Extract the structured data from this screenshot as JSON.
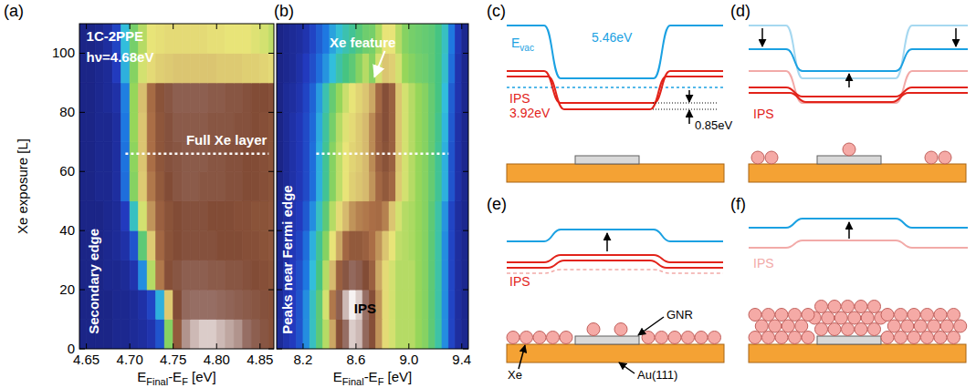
{
  "chart_data": [
    {
      "type": "heatmap",
      "panel_label": "(a)",
      "xlabel": [
        {
          "text": "E"
        },
        {
          "text": "Final",
          "sub": true
        },
        {
          "text": "-E"
        },
        {
          "text": "F",
          "sub": true
        },
        {
          "text": " [eV]"
        }
      ],
      "ylabel": "Xe exposure [L]",
      "xlim": [
        4.642,
        4.866
      ],
      "ylim": [
        0,
        110
      ],
      "xticks": [
        4.65,
        {
          "value": 4.7,
          "label": "4.70"
        },
        4.75,
        {
          "value": 4.8,
          "label": "4.80"
        },
        4.85
      ],
      "yticks": [
        0,
        20,
        40,
        60,
        80,
        100
      ],
      "x": [
        4.645,
        4.655,
        4.665,
        4.675,
        4.685,
        4.695,
        4.705,
        4.715,
        4.725,
        4.735,
        4.745,
        4.755,
        4.765,
        4.775,
        4.785,
        4.795,
        4.805,
        4.815,
        4.825,
        4.835,
        4.845,
        4.855,
        4.865
      ],
      "y": [
        5,
        15,
        25,
        35,
        45,
        55,
        65,
        75,
        85,
        95,
        105
      ],
      "cells": [
        [
          0.03,
          0.03,
          0.03,
          0.03,
          0.04,
          0.04,
          0.05,
          0.06,
          0.08,
          0.15,
          0.5,
          0.82,
          0.95,
          0.97,
          0.98,
          0.98,
          0.97,
          0.96,
          0.95,
          0.93,
          0.9,
          0.88,
          0.85
        ],
        [
          0.03,
          0.03,
          0.03,
          0.03,
          0.04,
          0.04,
          0.05,
          0.07,
          0.12,
          0.3,
          0.65,
          0.86,
          0.92,
          0.93,
          0.93,
          0.93,
          0.92,
          0.91,
          0.9,
          0.89,
          0.88,
          0.87,
          0.85
        ],
        [
          0.03,
          0.03,
          0.03,
          0.04,
          0.04,
          0.05,
          0.08,
          0.25,
          0.55,
          0.75,
          0.85,
          0.88,
          0.9,
          0.9,
          0.9,
          0.89,
          0.89,
          0.88,
          0.88,
          0.87,
          0.86,
          0.85,
          0.84
        ],
        [
          0.03,
          0.03,
          0.03,
          0.04,
          0.05,
          0.07,
          0.15,
          0.45,
          0.65,
          0.78,
          0.84,
          0.86,
          0.87,
          0.87,
          0.87,
          0.87,
          0.86,
          0.86,
          0.86,
          0.85,
          0.85,
          0.84,
          0.83
        ],
        [
          0.03,
          0.03,
          0.03,
          0.04,
          0.05,
          0.1,
          0.35,
          0.58,
          0.72,
          0.8,
          0.84,
          0.86,
          0.87,
          0.87,
          0.87,
          0.86,
          0.86,
          0.86,
          0.85,
          0.85,
          0.84,
          0.84,
          0.83
        ],
        [
          0.03,
          0.03,
          0.04,
          0.04,
          0.06,
          0.2,
          0.5,
          0.65,
          0.75,
          0.82,
          0.86,
          0.88,
          0.89,
          0.89,
          0.88,
          0.88,
          0.88,
          0.87,
          0.87,
          0.86,
          0.86,
          0.85,
          0.84
        ],
        [
          0.03,
          0.03,
          0.04,
          0.04,
          0.06,
          0.21,
          0.51,
          0.66,
          0.76,
          0.83,
          0.87,
          0.88,
          0.89,
          0.89,
          0.89,
          0.88,
          0.88,
          0.87,
          0.87,
          0.86,
          0.86,
          0.85,
          0.84
        ],
        [
          0.03,
          0.03,
          0.04,
          0.04,
          0.06,
          0.22,
          0.52,
          0.66,
          0.76,
          0.83,
          0.87,
          0.89,
          0.89,
          0.89,
          0.89,
          0.88,
          0.88,
          0.88,
          0.87,
          0.87,
          0.86,
          0.85,
          0.84
        ],
        [
          0.03,
          0.03,
          0.04,
          0.05,
          0.07,
          0.23,
          0.52,
          0.67,
          0.77,
          0.84,
          0.88,
          0.9,
          0.9,
          0.9,
          0.9,
          0.89,
          0.89,
          0.88,
          0.88,
          0.87,
          0.86,
          0.86,
          0.85
        ],
        [
          0.03,
          0.03,
          0.04,
          0.05,
          0.1,
          0.3,
          0.5,
          0.58,
          0.62,
          0.64,
          0.65,
          0.66,
          0.66,
          0.66,
          0.66,
          0.66,
          0.65,
          0.65,
          0.65,
          0.64,
          0.64,
          0.63,
          0.62
        ],
        [
          0.03,
          0.03,
          0.04,
          0.06,
          0.12,
          0.32,
          0.48,
          0.55,
          0.6,
          0.61,
          0.62,
          0.62,
          0.62,
          0.62,
          0.62,
          0.61,
          0.61,
          0.6,
          0.6,
          0.6,
          0.59,
          0.58,
          0.56
        ]
      ],
      "annotations": [
        {
          "text": "1C-2PPE",
          "x": 4.65,
          "y": 104,
          "color": "#ffffff"
        },
        {
          "text": "hν=4.68eV",
          "x": 4.65,
          "y": 97,
          "color": "#ffffff"
        },
        {
          "text": "Full Xe layer",
          "x": 4.765,
          "y": 69,
          "color": "#ffffff"
        }
      ],
      "vertical_annotations": [
        {
          "text": "Secondary edge",
          "x": 4.664,
          "y": 5,
          "color": "#ffffff"
        }
      ],
      "reference_lines": [
        {
          "y": 66,
          "x": [
            4.695,
            4.86
          ],
          "line_style": "dashed",
          "color": "#ffffff"
        }
      ]
    },
    {
      "type": "heatmap",
      "panel_label": "(b)",
      "xlabel": [
        {
          "text": "E"
        },
        {
          "text": "Final",
          "sub": true
        },
        {
          "text": "-E"
        },
        {
          "text": "F",
          "sub": true
        },
        {
          "text": " [eV]"
        }
      ],
      "xlim": [
        8.0,
        9.45
      ],
      "ylim": [
        0,
        110
      ],
      "xticks": [
        8.2,
        8.6,
        {
          "value": 9,
          "label": "9.0"
        },
        9.4
      ],
      "yticks": [
        0,
        20,
        40,
        60,
        80,
        100
      ],
      "tick_labels": "x",
      "x": [
        8.025,
        8.075,
        8.125,
        8.175,
        8.225,
        8.275,
        8.325,
        8.375,
        8.425,
        8.475,
        8.525,
        8.575,
        8.625,
        8.675,
        8.725,
        8.775,
        8.825,
        8.875,
        8.925,
        8.975,
        9.025,
        9.075,
        9.125,
        9.175,
        9.225,
        9.275,
        9.325,
        9.375,
        9.425
      ],
      "y": [
        5,
        15,
        25,
        35,
        45,
        55,
        65,
        75,
        85,
        95,
        105
      ],
      "cells": [
        [
          0.05,
          0.08,
          0.1,
          0.15,
          0.25,
          0.35,
          0.45,
          0.55,
          0.7,
          0.85,
          0.93,
          0.98,
          0.97,
          0.92,
          0.85,
          0.72,
          0.62,
          0.58,
          0.55,
          0.55,
          0.55,
          0.52,
          0.5,
          0.45,
          0.38,
          0.25,
          0.12,
          0.06,
          0.04
        ],
        [
          0.05,
          0.08,
          0.1,
          0.15,
          0.25,
          0.35,
          0.45,
          0.58,
          0.75,
          0.9,
          0.97,
          1.0,
          0.98,
          0.93,
          0.85,
          0.72,
          0.62,
          0.58,
          0.55,
          0.55,
          0.55,
          0.52,
          0.5,
          0.45,
          0.38,
          0.25,
          0.12,
          0.06,
          0.04
        ],
        [
          0.04,
          0.07,
          0.1,
          0.14,
          0.22,
          0.32,
          0.42,
          0.55,
          0.68,
          0.8,
          0.88,
          0.92,
          0.9,
          0.86,
          0.8,
          0.7,
          0.62,
          0.58,
          0.55,
          0.55,
          0.55,
          0.52,
          0.5,
          0.45,
          0.38,
          0.25,
          0.12,
          0.06,
          0.04
        ],
        [
          0.04,
          0.06,
          0.09,
          0.12,
          0.2,
          0.3,
          0.4,
          0.5,
          0.6,
          0.7,
          0.78,
          0.82,
          0.82,
          0.8,
          0.76,
          0.72,
          0.66,
          0.6,
          0.56,
          0.55,
          0.54,
          0.52,
          0.5,
          0.45,
          0.38,
          0.25,
          0.12,
          0.06,
          0.04
        ],
        [
          0.04,
          0.06,
          0.08,
          0.1,
          0.16,
          0.25,
          0.35,
          0.45,
          0.55,
          0.62,
          0.68,
          0.72,
          0.74,
          0.75,
          0.76,
          0.77,
          0.74,
          0.66,
          0.58,
          0.55,
          0.54,
          0.52,
          0.5,
          0.45,
          0.38,
          0.26,
          0.12,
          0.06,
          0.04
        ],
        [
          0.03,
          0.05,
          0.07,
          0.09,
          0.13,
          0.2,
          0.3,
          0.4,
          0.5,
          0.56,
          0.6,
          0.64,
          0.66,
          0.68,
          0.72,
          0.78,
          0.82,
          0.78,
          0.65,
          0.58,
          0.55,
          0.52,
          0.5,
          0.46,
          0.4,
          0.3,
          0.15,
          0.07,
          0.04
        ],
        [
          0.03,
          0.05,
          0.07,
          0.09,
          0.13,
          0.2,
          0.3,
          0.4,
          0.5,
          0.56,
          0.6,
          0.63,
          0.65,
          0.68,
          0.73,
          0.8,
          0.84,
          0.8,
          0.66,
          0.58,
          0.55,
          0.52,
          0.5,
          0.46,
          0.4,
          0.3,
          0.15,
          0.07,
          0.04
        ],
        [
          0.03,
          0.05,
          0.07,
          0.09,
          0.13,
          0.19,
          0.29,
          0.39,
          0.48,
          0.55,
          0.59,
          0.62,
          0.65,
          0.68,
          0.73,
          0.8,
          0.85,
          0.8,
          0.66,
          0.58,
          0.55,
          0.52,
          0.5,
          0.46,
          0.41,
          0.31,
          0.16,
          0.07,
          0.04
        ],
        [
          0.03,
          0.05,
          0.06,
          0.08,
          0.12,
          0.18,
          0.27,
          0.37,
          0.46,
          0.52,
          0.57,
          0.6,
          0.63,
          0.66,
          0.7,
          0.78,
          0.85,
          0.8,
          0.66,
          0.58,
          0.55,
          0.52,
          0.5,
          0.46,
          0.42,
          0.32,
          0.17,
          0.08,
          0.04
        ],
        [
          0.03,
          0.04,
          0.05,
          0.07,
          0.1,
          0.14,
          0.2,
          0.26,
          0.32,
          0.38,
          0.42,
          0.45,
          0.5,
          0.55,
          0.5,
          0.58,
          0.66,
          0.64,
          0.58,
          0.52,
          0.5,
          0.48,
          0.47,
          0.45,
          0.42,
          0.34,
          0.2,
          0.08,
          0.04
        ],
        [
          0.03,
          0.04,
          0.05,
          0.06,
          0.08,
          0.12,
          0.17,
          0.22,
          0.28,
          0.33,
          0.37,
          0.4,
          0.44,
          0.47,
          0.48,
          0.54,
          0.6,
          0.6,
          0.55,
          0.5,
          0.48,
          0.47,
          0.46,
          0.45,
          0.42,
          0.35,
          0.22,
          0.09,
          0.04
        ]
      ],
      "annotations": [
        {
          "text": "Xe feature",
          "x": 8.4,
          "y": 102,
          "color": "#ffffff",
          "arrow_to": [
            8.74,
            92
          ]
        },
        {
          "text": "IPS",
          "x": 8.585,
          "y": 12,
          "color": "#000000"
        }
      ],
      "vertical_annotations": [
        {
          "text": "Peaks near Fermi edge",
          "x": 8.12,
          "y": 5,
          "color": "#ffffff"
        }
      ],
      "reference_lines": [
        {
          "y": 66,
          "x": [
            8.3,
            9.3
          ],
          "line_style": "dashed",
          "color": "#ffffff"
        }
      ]
    }
  ],
  "diagrams": {
    "c": {
      "label": "(c)",
      "evac": [
        {
          "text": "E"
        },
        {
          "text": "vac",
          "sub": true
        }
      ],
      "evac_value": "5.46eV",
      "ips": "IPS",
      "ips_value": "3.92eV",
      "shift": "0.85eV"
    },
    "d": {
      "label": "(d)",
      "ips": "IPS"
    },
    "e": {
      "label": "(e)",
      "ips": "IPS",
      "gnr": "GNR",
      "xe": "Xe",
      "substrate": "Au(111)"
    },
    "f": {
      "label": "(f)",
      "ips": "IPS"
    }
  }
}
